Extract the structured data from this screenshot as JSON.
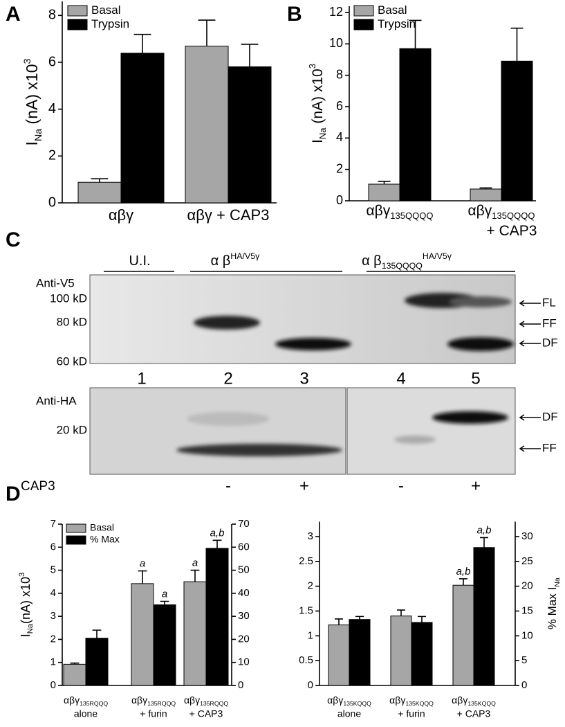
{
  "panel_labels": [
    "A",
    "B",
    "C",
    "D"
  ],
  "chart_data": [
    {
      "type": "bar",
      "y_label": {
        "main": "I",
        "sub": "Na",
        "rest": " (nA) x10",
        "sup": "3"
      },
      "categories": [
        {
          "main": "αβγ"
        },
        {
          "main": "αβγ + CAP3"
        }
      ],
      "series": [
        {
          "name": "Basal",
          "color": "#a6a6a6",
          "values": [
            0.88,
            6.69
          ],
          "errors": [
            0.15,
            1.11
          ]
        },
        {
          "name": "Trypsin",
          "color": "#000000",
          "values": [
            6.39,
            5.81
          ],
          "errors": [
            0.8,
            0.96
          ]
        }
      ],
      "ylim": [
        0,
        8.6
      ],
      "yticks": [
        0,
        2,
        4,
        6,
        8
      ]
    },
    {
      "type": "bar",
      "y_label": {
        "main": "I",
        "sub": "Na",
        "rest": " (nA) x10",
        "sup": "3"
      },
      "categories": [
        {
          "main": "αβγ",
          "sub": "135QQQQ"
        },
        {
          "main": "αβγ",
          "sub": "135QQQQ",
          "line2": "+ CAP3"
        }
      ],
      "series": [
        {
          "name": "Basal",
          "color": "#a6a6a6",
          "values": [
            1.06,
            0.75
          ],
          "errors": [
            0.18,
            0.07
          ]
        },
        {
          "name": "Trypsin",
          "color": "#000000",
          "values": [
            9.7,
            8.9
          ],
          "errors": [
            1.8,
            2.1
          ]
        }
      ],
      "ylim": [
        0,
        12.4
      ],
      "yticks": [
        0,
        2,
        4,
        6,
        8,
        10,
        12
      ]
    },
    {
      "type": "bar",
      "y_label": {
        "main": "I",
        "sub": "Na",
        "rest": "(nA) x10",
        "sup": "3"
      },
      "categories": [
        {
          "main": "αβγ",
          "sub": "135RQQQ",
          "line2": "alone"
        },
        {
          "main": "αβγ",
          "sub": "135RQQQ",
          "line2": "+ furin"
        },
        {
          "main": "αβγ",
          "sub": "135RQQQ",
          "line2": "+ CAP3"
        }
      ],
      "series": [
        {
          "name": "Basal",
          "color": "#a6a6a6",
          "values": [
            0.92,
            4.42,
            4.5
          ],
          "errors": [
            0.05,
            0.55,
            0.5
          ],
          "labels": [
            null,
            "a",
            "a"
          ]
        },
        {
          "name": "% Max",
          "color": "#000000",
          "axis": "y2",
          "values": [
            20.5,
            35,
            59.5
          ],
          "errors": [
            3.5,
            1.5,
            3.5
          ],
          "labels": [
            null,
            "a",
            "a,b"
          ]
        }
      ],
      "ylim": [
        0,
        7
      ],
      "yticks": [
        0,
        1,
        2,
        3,
        4,
        5,
        6,
        7
      ],
      "y2lim": [
        0,
        70
      ],
      "y2ticks": [
        0,
        10,
        20,
        30,
        40,
        50,
        60,
        70
      ]
    },
    {
      "type": "bar",
      "y2_label": {
        "main": "% Max I",
        "sub": "Na"
      },
      "categories": [
        {
          "main": "αβγ",
          "sub": "135KQQQ",
          "line2": "alone"
        },
        {
          "main": "αβγ",
          "sub": "135KQQQ",
          "line2": "+ furin"
        },
        {
          "main": "αβγ",
          "sub": "135KQQQ",
          "line2": "+ CAP3"
        }
      ],
      "series": [
        {
          "name": "Basal",
          "color": "#a6a6a6",
          "values": [
            1.22,
            1.4,
            2.02
          ],
          "errors": [
            0.12,
            0.12,
            0.13
          ],
          "labels": [
            null,
            null,
            "a,b"
          ]
        },
        {
          "name": "% Max",
          "color": "#000000",
          "axis": "y2",
          "values": [
            13.3,
            12.7,
            27.8
          ],
          "errors": [
            0.6,
            1.2,
            2
          ],
          "labels": [
            null,
            null,
            "a,b"
          ]
        }
      ],
      "ylim": [
        0,
        3.3
      ],
      "yticks": [
        0,
        0.5,
        1,
        1.5,
        2,
        2.5,
        3
      ],
      "y2lim": [
        0,
        33
      ],
      "y2ticks": [
        0,
        5,
        10,
        15,
        20,
        25,
        30
      ]
    }
  ],
  "blot": {
    "groups": [
      {
        "main": "U.I."
      },
      {
        "main": "α β",
        "sup": "HA/V5γ"
      },
      {
        "main": "α β",
        "sup": "HA/V5γ",
        "sub": "135QQQQ"
      }
    ],
    "top": {
      "antibody": "Anti-V5",
      "markers": [
        "100 kD",
        "80 kD",
        "60 kD"
      ],
      "bands": [
        "FL",
        "FF",
        "DF"
      ]
    },
    "lanes": [
      "1",
      "2",
      "3",
      "4",
      "5"
    ],
    "bottom": {
      "antibody": "Anti-HA",
      "markers": [
        "20 kD"
      ],
      "bands": [
        "DF",
        "FF"
      ]
    },
    "treatment": "CAP3",
    "signs": [
      "-",
      "+",
      "-",
      "+"
    ]
  }
}
